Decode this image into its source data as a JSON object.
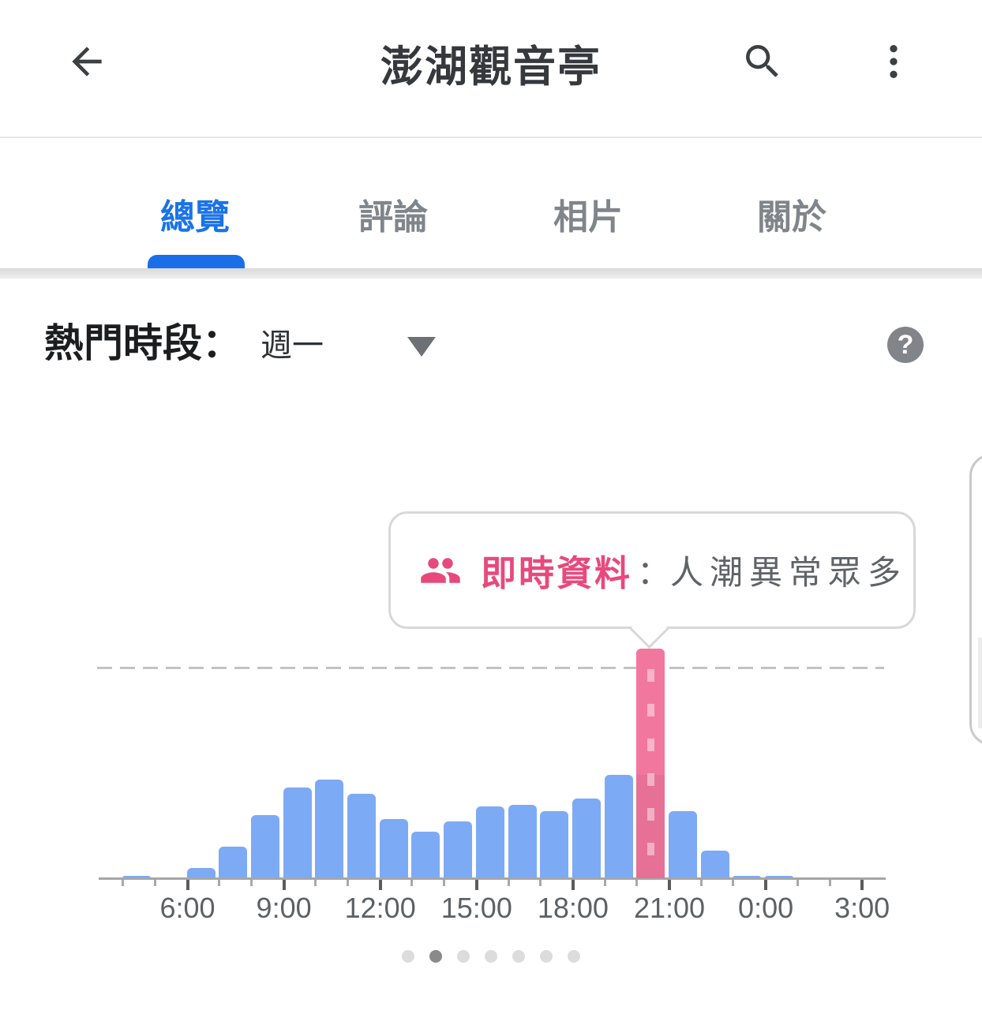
{
  "header": {
    "title": "澎湖觀音亭",
    "back_icon": "arrow-back",
    "search_icon": "magnifier",
    "more_icon": "kebab-menu"
  },
  "tabs": [
    {
      "label": "總覽",
      "active": true
    },
    {
      "label": "評論",
      "active": false
    },
    {
      "label": "相片",
      "active": false
    },
    {
      "label": "關於",
      "active": false
    }
  ],
  "popular_times": {
    "heading": "熱門時段：",
    "selected_day": "週一",
    "help_icon": "question-mark",
    "help_glyph": "?"
  },
  "tooltip": {
    "icon": "people-icon",
    "title": "即時資料",
    "separator": "：",
    "message": "人潮異常眾多"
  },
  "chart_data": {
    "type": "bar",
    "title": "熱門時段（週一）",
    "categories": [
      "4:00",
      "5:00",
      "6:00",
      "7:00",
      "8:00",
      "9:00",
      "10:00",
      "11:00",
      "12:00",
      "13:00",
      "14:00",
      "15:00",
      "16:00",
      "17:00",
      "18:00",
      "19:00",
      "20:00",
      "21:00",
      "22:00",
      "23:00",
      "0:00",
      "1:00",
      "2:00",
      "3:00"
    ],
    "values": [
      1,
      0,
      5,
      15,
      30,
      43,
      47,
      40,
      28,
      22,
      27,
      34,
      35,
      32,
      38,
      49,
      109,
      32,
      13,
      1,
      1,
      0,
      0,
      0
    ],
    "live_bar": {
      "category": "20:00",
      "value": 109,
      "usual_value": 49,
      "status": "人潮異常眾多"
    },
    "dashed_reference_value": 100,
    "tick_labels": [
      "6:00",
      "9:00",
      "12:00",
      "15:00",
      "18:00",
      "21:00",
      "0:00",
      "3:00"
    ],
    "ylim": [
      0,
      115
    ],
    "grid": "single-dashed-reference-line",
    "legend": "none"
  },
  "carousel": {
    "dot_count": 7,
    "active_index": 1
  },
  "colors": {
    "accent_blue": "#1a73e8",
    "bar_blue": "#7daaf5",
    "bar_live_pink": "#f2779f",
    "tooltip_pink": "#e8497c",
    "inactive_tab_gray": "#7f858b",
    "axis_gray": "#a6a6a6",
    "dashed_line_gray": "#c3c3c3"
  }
}
